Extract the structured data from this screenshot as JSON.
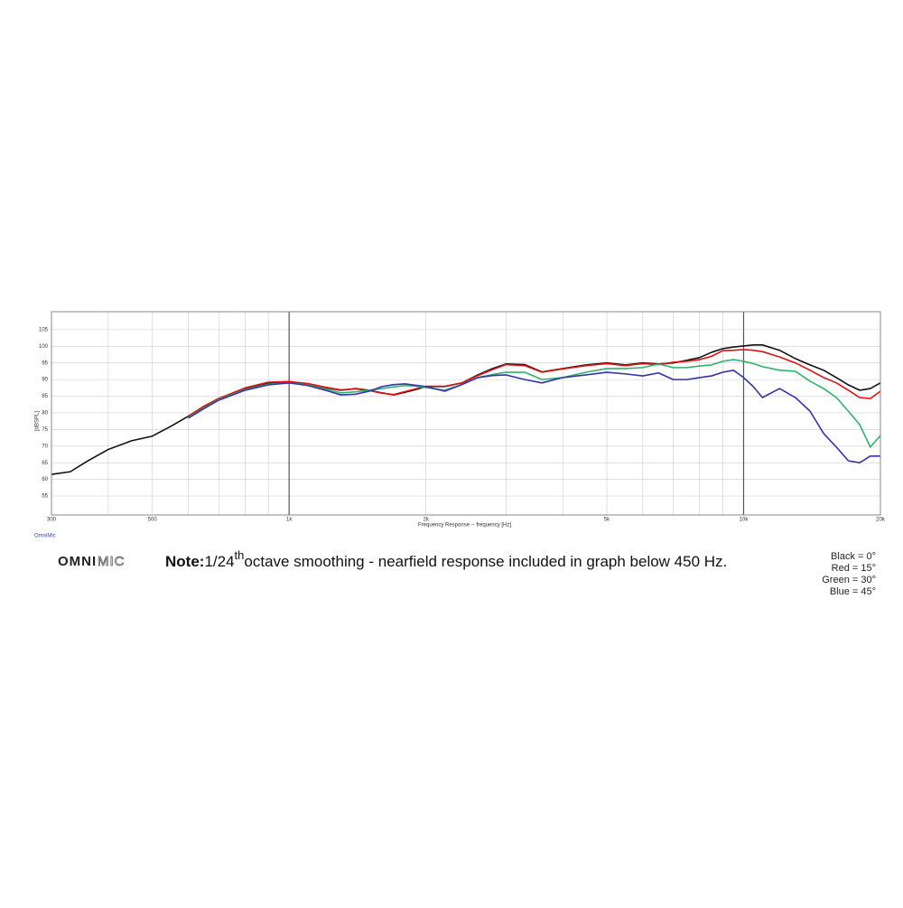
{
  "chart_data": {
    "type": "line",
    "x_label": "Frequency Response -- frequency [Hz]",
    "y_label": "[dBSPL]",
    "watermark": "OmniMic",
    "logo": [
      "OMNI",
      "MIC"
    ],
    "note": {
      "bold": "Note:",
      "pre": "1/24",
      "sup": "th",
      "post": "octave smoothing - nearfield response included in graph below 450 Hz."
    },
    "log_x": true,
    "grid": true,
    "xlim": [
      300,
      20000
    ],
    "ylim": [
      49.3,
      110.4
    ],
    "xticks": [
      300,
      500,
      {
        "value": 1000,
        "label": "1k"
      },
      {
        "value": 2000,
        "label": "2k"
      },
      {
        "value": 5000,
        "label": "5k"
      },
      {
        "value": 10000,
        "label": "10k"
      },
      {
        "value": 20000,
        "label": "20k"
      }
    ],
    "xminor": [
      400,
      600,
      700,
      800,
      900,
      3000,
      4000,
      6000,
      7000,
      8000,
      9000
    ],
    "xmajor": [
      1000,
      10000
    ],
    "yticks": [
      55,
      60,
      65,
      70,
      75,
      80,
      85,
      90,
      95,
      100,
      105
    ],
    "x": [
      300,
      330,
      360,
      400,
      450,
      500,
      550,
      600,
      650,
      700,
      800,
      900,
      1000,
      1100,
      1200,
      1300,
      1400,
      1500,
      1600,
      1700,
      1800,
      1900,
      2000,
      2200,
      2400,
      2600,
      2800,
      3000,
      3300,
      3600,
      4000,
      4500,
      5000,
      5500,
      6000,
      6500,
      7000,
      7500,
      8000,
      8500,
      9000,
      9500,
      10000,
      10500,
      11000,
      12000,
      13000,
      14000,
      15000,
      16000,
      17000,
      18000,
      19000,
      20000
    ],
    "series": [
      {
        "name": "Black = 0°",
        "color": "#111111",
        "values": [
          61.5,
          62.3,
          65.5,
          69,
          71.6,
          73,
          76,
          79,
          82,
          84.3,
          87.3,
          89,
          89.3,
          88.7,
          87.6,
          86.8,
          87.3,
          86.8,
          86,
          85.4,
          86.2,
          87,
          87.9,
          87.9,
          89,
          91.4,
          93.3,
          94.7,
          94.5,
          92.3,
          93.3,
          94.4,
          95,
          94.4,
          95,
          94.7,
          95,
          95.8,
          96.6,
          98.2,
          99.3,
          99.8,
          100.1,
          100.4,
          100.4,
          98.8,
          96.3,
          94.4,
          92.8,
          90.6,
          88.4,
          86.8,
          87.3,
          89
        ]
      },
      {
        "name": "Red = 15°",
        "color": "#e01010",
        "values": [
          null,
          null,
          null,
          null,
          null,
          null,
          null,
          79,
          82,
          84.3,
          87.5,
          89.2,
          89.4,
          88.8,
          87.7,
          86.9,
          87.2,
          86.7,
          85.9,
          85.5,
          86.4,
          87.2,
          88,
          88,
          89,
          91.2,
          93,
          94.5,
          94.2,
          92.2,
          93.2,
          94.2,
          94.8,
          94.2,
          94.8,
          94.5,
          95.2,
          95.5,
          96,
          97,
          98.7,
          98.8,
          99,
          98.8,
          98.4,
          96.8,
          95,
          92.8,
          90.6,
          89,
          86.8,
          84.6,
          84.3,
          86.5
        ]
      },
      {
        "name": "Green = 30°",
        "color": "#2db36b",
        "values": [
          null,
          null,
          null,
          null,
          null,
          null,
          null,
          78.6,
          81.5,
          84,
          87,
          88.6,
          89,
          88.4,
          87.2,
          86,
          86.3,
          86.8,
          87.3,
          87.8,
          88.2,
          88,
          87.6,
          86.8,
          88.5,
          90.6,
          91.5,
          92.2,
          92.2,
          90,
          90.6,
          92.2,
          93.3,
          93.3,
          93.6,
          94.7,
          93.6,
          93.6,
          94.1,
          94.4,
          95.5,
          96,
          95.5,
          94.8,
          93.9,
          92.8,
          92.5,
          89.5,
          87.3,
          84.6,
          80.5,
          76.5,
          69.7,
          73.2
        ]
      },
      {
        "name": "Blue = 45°",
        "color": "#3333aa",
        "values": [
          null,
          null,
          null,
          null,
          null,
          null,
          null,
          78.4,
          81.3,
          83.8,
          86.8,
          88.4,
          89,
          88.2,
          86.8,
          85.4,
          85.6,
          86.5,
          87.9,
          88.5,
          88.7,
          88.3,
          87.9,
          86.5,
          88.5,
          90.6,
          91.2,
          91.4,
          90,
          89,
          90.6,
          91.4,
          92.2,
          91.7,
          91.1,
          92,
          90,
          90,
          90.6,
          91.1,
          92.2,
          92.8,
          90.6,
          87.9,
          84.6,
          87.3,
          84.6,
          80.5,
          73.8,
          69.7,
          65.6,
          65,
          67,
          67
        ]
      }
    ]
  }
}
